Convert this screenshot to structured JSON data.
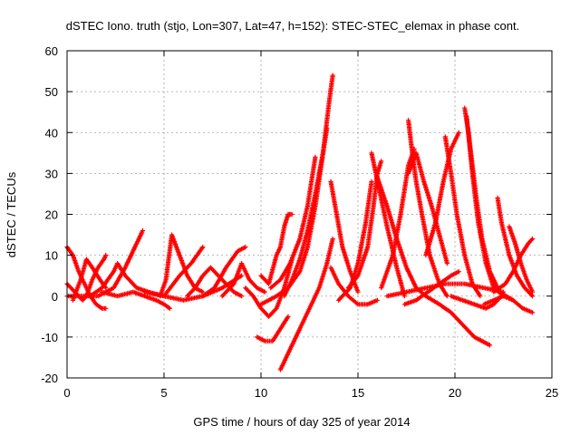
{
  "chart_data": {
    "type": "scatter",
    "title": "dSTEC Iono. truth (stjo, Lon=307, Lat=47, h=152): STEC-STEC_elemax in phase cont.",
    "xlabel": "GPS time / hours of day 325 of year 2014",
    "ylabel": "dSTEC  / TECUs",
    "xlim": [
      0,
      25
    ],
    "ylim": [
      -20,
      60
    ],
    "xticks": [
      0,
      5,
      10,
      15,
      20,
      25
    ],
    "yticks": [
      -20,
      -10,
      0,
      10,
      20,
      30,
      40,
      50,
      60
    ],
    "grid": true,
    "marker": "plus",
    "color": "#ff0000",
    "series": [
      {
        "x": [
          0.0,
          0.3,
          0.6,
          0.9,
          1.2,
          1.5,
          1.8,
          2.0
        ],
        "y": [
          12,
          10,
          6,
          3,
          0,
          -2,
          -3,
          -3
        ]
      },
      {
        "x": [
          0.0,
          0.4,
          0.8,
          1.0,
          1.3,
          1.6,
          1.9,
          2.0
        ],
        "y": [
          3,
          1,
          -1,
          0,
          4,
          7,
          9,
          10
        ]
      },
      {
        "x": [
          0.3,
          0.7,
          1.0,
          1.3,
          1.7,
          2.0
        ],
        "y": [
          -1,
          4,
          9,
          7,
          4,
          2
        ]
      },
      {
        "x": [
          0.0,
          0.8,
          1.6,
          2.4,
          3.0,
          3.5,
          3.9
        ],
        "y": [
          0,
          0,
          0,
          2,
          7,
          12,
          16
        ]
      },
      {
        "x": [
          1.2,
          1.8,
          2.4,
          2.6,
          3.0,
          3.6,
          4.2,
          5.0
        ],
        "y": [
          0,
          2,
          6,
          8,
          5,
          2,
          1,
          0
        ]
      },
      {
        "x": [
          1.8,
          2.6,
          3.4,
          4.0,
          4.6,
          5.0,
          5.3
        ],
        "y": [
          1,
          0,
          1,
          0,
          -1,
          -2,
          -3
        ]
      },
      {
        "x": [
          4.8,
          5.1,
          5.4,
          5.8,
          6.2,
          6.6,
          7.0
        ],
        "y": [
          0,
          4,
          15,
          10,
          5,
          2,
          1
        ]
      },
      {
        "x": [
          5.0,
          5.8,
          6.4,
          7.0
        ],
        "y": [
          0,
          5,
          8,
          12
        ]
      },
      {
        "x": [
          4.0,
          5.0,
          6.0,
          7.0,
          8.0,
          9.0
        ],
        "y": [
          1,
          0,
          -1,
          0,
          2,
          5
        ]
      },
      {
        "x": [
          6.2,
          6.6,
          7.0,
          7.4,
          7.8,
          8.2,
          8.6,
          9.0
        ],
        "y": [
          0,
          2,
          5,
          7,
          5,
          3,
          1,
          0
        ]
      },
      {
        "x": [
          7.0,
          7.6,
          8.2,
          8.8,
          9.2
        ],
        "y": [
          0,
          2,
          7,
          11,
          12
        ]
      },
      {
        "x": [
          8.0,
          8.6,
          9.0,
          9.4,
          9.8,
          10.2
        ],
        "y": [
          0,
          3,
          8,
          4,
          2,
          1
        ]
      },
      {
        "x": [
          9.8,
          10.2,
          10.6,
          11.0,
          11.4
        ],
        "y": [
          -10,
          -11,
          -11,
          -8,
          -5
        ]
      },
      {
        "x": [
          9.2,
          9.6,
          10.0,
          10.4,
          10.8,
          11.2,
          11.6
        ],
        "y": [
          2,
          0,
          -3,
          -5,
          -3,
          2,
          9
        ]
      },
      {
        "x": [
          10.0,
          10.4,
          10.8,
          11.0,
          11.2,
          11.4,
          11.6
        ],
        "y": [
          5,
          3,
          10,
          12,
          17,
          20,
          20
        ]
      },
      {
        "x": [
          11.0,
          11.4,
          11.8,
          12.2,
          12.6,
          13.0,
          13.4,
          13.7
        ],
        "y": [
          -18,
          -14,
          -10,
          -6,
          -2,
          2,
          8,
          14
        ]
      },
      {
        "x": [
          10.0,
          10.8,
          11.4,
          12.0,
          12.4,
          12.8,
          13.2,
          13.4
        ],
        "y": [
          -2,
          0,
          2,
          6,
          12,
          22,
          35,
          41
        ]
      },
      {
        "x": [
          11.2,
          11.6,
          12.0,
          12.4,
          12.8,
          13.2,
          13.5,
          13.7
        ],
        "y": [
          0,
          4,
          9,
          16,
          25,
          35,
          47,
          54
        ]
      },
      {
        "x": [
          10.5,
          11.0,
          11.5,
          12.0,
          12.4,
          12.8
        ],
        "y": [
          2,
          4,
          8,
          14,
          22,
          34
        ]
      },
      {
        "x": [
          13.6,
          13.9,
          14.2,
          14.6,
          15.0
        ],
        "y": [
          28,
          20,
          12,
          6,
          1
        ]
      },
      {
        "x": [
          13.6,
          14.0,
          14.5,
          15.0,
          15.5,
          16.0
        ],
        "y": [
          7,
          3,
          0,
          -2,
          -2,
          -1
        ]
      },
      {
        "x": [
          14.0,
          14.6,
          15.0,
          15.4,
          15.7
        ],
        "y": [
          -1,
          2,
          8,
          18,
          28
        ]
      },
      {
        "x": [
          15.7,
          16.1,
          16.5,
          17.0,
          17.4
        ],
        "y": [
          35,
          26,
          17,
          7,
          0
        ]
      },
      {
        "x": [
          14.5,
          15.0,
          15.5,
          15.8,
          16.0,
          16.2
        ],
        "y": [
          2,
          5,
          12,
          22,
          30,
          33
        ]
      },
      {
        "x": [
          16.0,
          16.5,
          17.0,
          17.5,
          18.0,
          18.5
        ],
        "y": [
          29,
          22,
          14,
          7,
          2,
          0
        ]
      },
      {
        "x": [
          16.2,
          16.8,
          17.2,
          17.6,
          17.9
        ],
        "y": [
          2,
          10,
          20,
          32,
          36
        ]
      },
      {
        "x": [
          17.6,
          17.8,
          18.0,
          18.3,
          18.7,
          19.2,
          19.6
        ],
        "y": [
          43,
          35,
          28,
          20,
          10,
          3,
          0
        ]
      },
      {
        "x": [
          17.6,
          18.0,
          18.4,
          18.8,
          19.2,
          19.6
        ],
        "y": [
          30,
          35,
          28,
          22,
          15,
          8
        ]
      },
      {
        "x": [
          18.5,
          19.0,
          19.4,
          19.8,
          20.2
        ],
        "y": [
          10,
          18,
          28,
          36,
          40
        ]
      },
      {
        "x": [
          19.5,
          19.8,
          20.1,
          20.5,
          20.9,
          21.3
        ],
        "y": [
          39,
          30,
          20,
          10,
          3,
          0
        ]
      },
      {
        "x": [
          17.4,
          18.0,
          18.6,
          19.2,
          19.8,
          20.2
        ],
        "y": [
          -2,
          -1,
          1,
          3,
          5,
          6
        ]
      },
      {
        "x": [
          16.5,
          17.5,
          18.5,
          19.5,
          20.5,
          21.5,
          22.5
        ],
        "y": [
          0,
          1,
          2,
          3,
          3,
          2,
          1
        ]
      },
      {
        "x": [
          20.5,
          20.7,
          20.9,
          21.1,
          21.4,
          21.8,
          22.3,
          23.0
        ],
        "y": [
          46,
          40,
          32,
          24,
          14,
          6,
          1,
          -1
        ]
      },
      {
        "x": [
          20.6,
          20.9,
          21.2,
          21.6,
          22.0,
          22.5
        ],
        "y": [
          44,
          30,
          18,
          8,
          2,
          0
        ]
      },
      {
        "x": [
          18.5,
          19.2,
          19.8,
          20.4,
          21.0,
          21.8
        ],
        "y": [
          0,
          -2,
          -4,
          -7,
          -10,
          -12
        ]
      },
      {
        "x": [
          22.2,
          22.4,
          22.8,
          23.2,
          23.6,
          24.0
        ],
        "y": [
          24,
          18,
          10,
          5,
          2,
          0
        ]
      },
      {
        "x": [
          22.8,
          23.1,
          23.4,
          23.7,
          24.0
        ],
        "y": [
          17,
          13,
          8,
          4,
          1
        ]
      },
      {
        "x": [
          22.0,
          22.6,
          23.0,
          23.4,
          23.8,
          24.0
        ],
        "y": [
          1,
          3,
          6,
          10,
          13,
          14
        ]
      },
      {
        "x": [
          21.5,
          22.0,
          22.5,
          23.0,
          23.5,
          24.0
        ],
        "y": [
          -2,
          -1,
          0,
          -1,
          -3,
          -4
        ]
      },
      {
        "x": [
          19.8,
          20.4,
          21.0,
          21.6,
          22.0,
          22.4
        ],
        "y": [
          0,
          -1,
          -2,
          -3,
          -2,
          0
        ]
      }
    ]
  }
}
